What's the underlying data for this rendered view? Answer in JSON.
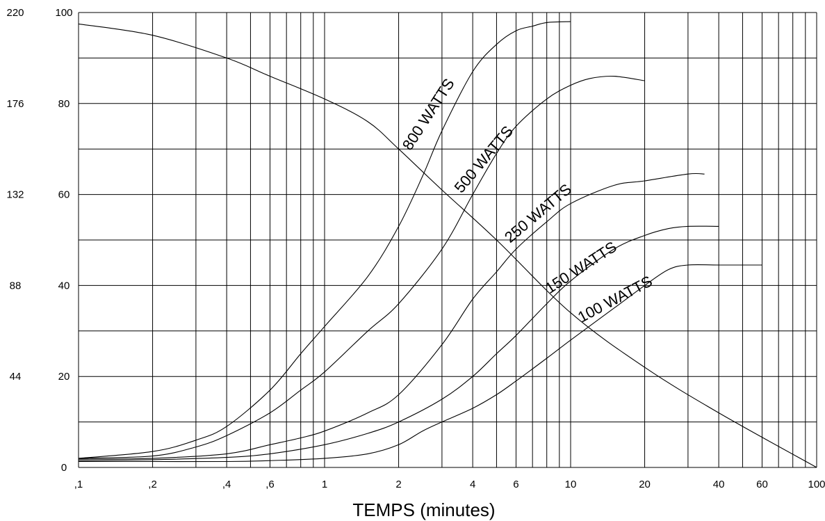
{
  "chart_data": {
    "type": "line",
    "xlabel": "TEMPS (minutes)",
    "ylabel": "",
    "xscale": "log",
    "xlim": [
      0.1,
      100
    ],
    "ylim": [
      0,
      100
    ],
    "grid": true,
    "x_ticks": [
      {
        "value": 0.1,
        "label": ",1"
      },
      {
        "value": 0.2,
        "label": ",2"
      },
      {
        "value": 0.4,
        "label": ",4"
      },
      {
        "value": 0.6,
        "label": ",6"
      },
      {
        "value": 1,
        "label": "1"
      },
      {
        "value": 2,
        "label": "2"
      },
      {
        "value": 4,
        "label": "4"
      },
      {
        "value": 6,
        "label": "6"
      },
      {
        "value": 10,
        "label": "10"
      },
      {
        "value": 20,
        "label": "20"
      },
      {
        "value": 40,
        "label": "40"
      },
      {
        "value": 60,
        "label": "60"
      },
      {
        "value": 100,
        "label": "100"
      }
    ],
    "y_ticks": [
      {
        "value": 0,
        "label": "0"
      },
      {
        "value": 20,
        "label": "20"
      },
      {
        "value": 40,
        "label": "40"
      },
      {
        "value": 60,
        "label": "60"
      },
      {
        "value": 80,
        "label": "80"
      },
      {
        "value": 100,
        "label": "100"
      }
    ],
    "y2_ticks": [
      {
        "value": 20,
        "label": "44"
      },
      {
        "value": 40,
        "label": "88"
      },
      {
        "value": 60,
        "label": "132"
      },
      {
        "value": 80,
        "label": "176"
      },
      {
        "value": 100,
        "label": "220"
      }
    ],
    "series": [
      {
        "name": "800 WATTS",
        "x": [
          0.1,
          0.2,
          0.3,
          0.4,
          0.6,
          0.8,
          1,
          1.5,
          2,
          2.5,
          3,
          4,
          5,
          6,
          7,
          8,
          10
        ],
        "y": [
          2,
          3.5,
          6,
          9,
          17,
          25,
          31,
          42,
          53,
          64,
          74,
          87,
          93,
          96,
          97,
          97.8,
          98
        ]
      },
      {
        "name": "500 WATTS",
        "x": [
          0.1,
          0.2,
          0.3,
          0.4,
          0.6,
          0.8,
          1,
          1.5,
          2,
          3,
          4,
          5,
          6,
          8,
          10,
          12,
          15,
          20
        ],
        "y": [
          2,
          2.5,
          4.5,
          7,
          12,
          17,
          21,
          30,
          36,
          48,
          60,
          69,
          75,
          81,
          84,
          85.5,
          86,
          85
        ]
      },
      {
        "name": "250 WATTS",
        "x": [
          0.1,
          0.2,
          0.4,
          0.6,
          0.8,
          1,
          1.5,
          2,
          3,
          4,
          5,
          6,
          8,
          10,
          15,
          20,
          30,
          35
        ],
        "y": [
          1.8,
          2,
          3,
          5,
          6.5,
          8,
          12,
          16,
          27,
          37,
          43,
          48,
          54,
          58,
          62,
          63,
          64.5,
          64.5
        ]
      },
      {
        "name": "150 WATTS",
        "x": [
          0.1,
          0.2,
          0.4,
          0.6,
          1,
          1.5,
          2,
          3,
          4,
          5,
          6,
          8,
          10,
          15,
          20,
          25,
          30,
          40
        ],
        "y": [
          1.5,
          1.7,
          2.2,
          3,
          5,
          7.5,
          10,
          15,
          20,
          25,
          29,
          36,
          41,
          48,
          51,
          52.5,
          53,
          53
        ]
      },
      {
        "name": "100 WATTS",
        "x": [
          0.1,
          0.2,
          0.4,
          0.6,
          1,
          1.5,
          2,
          2.5,
          3,
          4,
          5,
          6,
          8,
          10,
          15,
          20,
          25,
          30,
          40,
          60
        ],
        "y": [
          1.3,
          1.3,
          1.3,
          1.5,
          2,
          3,
          5,
          8,
          10,
          13,
          16,
          19,
          24,
          28,
          35,
          40,
          43.5,
          44.5,
          44.5,
          44.5
        ]
      },
      {
        "name": "",
        "x": [
          0.1,
          0.2,
          0.4,
          0.6,
          1,
          1.5,
          2,
          3,
          5,
          10,
          20,
          40,
          100
        ],
        "y": [
          97.5,
          95,
          90,
          86,
          81,
          76,
          70,
          61,
          50,
          34,
          22,
          12,
          0
        ]
      }
    ]
  }
}
